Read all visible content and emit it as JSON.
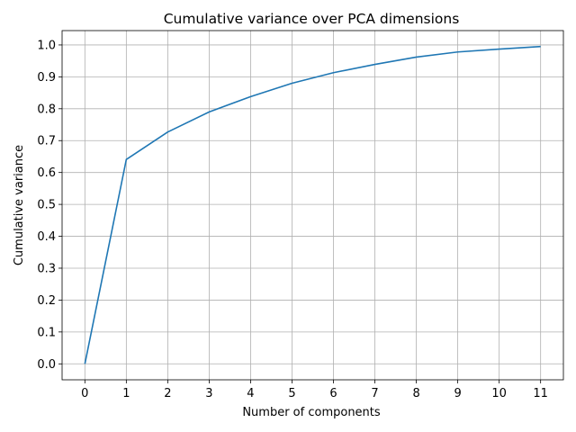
{
  "chart_data": {
    "type": "line",
    "title": "Cumulative variance over PCA dimensions",
    "xlabel": "Number of components",
    "ylabel": "Cumulative variance",
    "x": [
      0,
      1,
      2,
      3,
      4,
      5,
      6,
      7,
      8,
      9,
      10,
      11
    ],
    "series": [
      {
        "values": [
          0.0,
          0.641,
          0.727,
          0.79,
          0.838,
          0.88,
          0.913,
          0.939,
          0.962,
          0.978,
          0.987,
          0.995
        ]
      }
    ],
    "xticks": [
      0,
      1,
      2,
      3,
      4,
      5,
      6,
      7,
      8,
      9,
      10,
      11
    ],
    "yticks": [
      0.0,
      0.1,
      0.2,
      0.3,
      0.4,
      0.5,
      0.6,
      0.7,
      0.8,
      0.9,
      1.0
    ],
    "ytick_labels": [
      "0.0",
      "0.1",
      "0.2",
      "0.3",
      "0.4",
      "0.5",
      "0.6",
      "0.7",
      "0.8",
      "0.9",
      "1.0"
    ],
    "xlim": [
      -0.55,
      11.55
    ],
    "ylim": [
      -0.05,
      1.045
    ],
    "grid": true,
    "line_color": "#1f77b4",
    "grid_color": "#b0b0b0"
  }
}
